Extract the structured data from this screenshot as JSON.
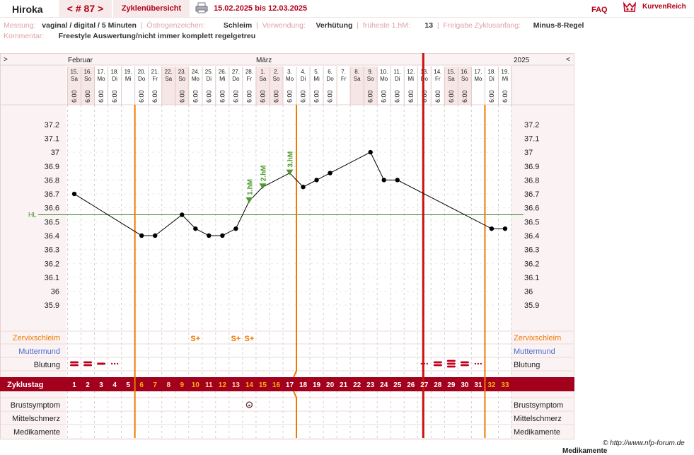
{
  "header": {
    "user": "Hiroka",
    "cycle_nav": "< # 87 >",
    "overview_link": "Zyklenübersicht",
    "printer_icon": "printer-icon",
    "date_range": "15.02.2025 bis 12.03.2025",
    "faq": "FAQ",
    "logo_text": "KurvenReich"
  },
  "info": {
    "messung_label": "Messung:",
    "messung_value": "vaginal / digital / 5 Minuten",
    "oestrogen_label": "Östrogenzeichen:",
    "oestrogen_value": "Schleim",
    "verwendung_label": "Verwendung:",
    "verwendung_value": "Verhütung",
    "frueheste_label": "früheste 1.hM:",
    "frueheste_value": "13",
    "freigabe_label": "Freigabe Zyklusanfang:",
    "freigabe_value": "Minus-8-Regel",
    "kommentar_label": "Kommentar:",
    "kommentar_value": "Freestyle Auswertung/nicht immer komplett regelgetreu"
  },
  "chart_data": {
    "type": "line",
    "months": {
      "left_arrow": ">",
      "feb": "Februar",
      "mar": "März",
      "year": "2025",
      "right_arrow": "<"
    },
    "days": [
      {
        "d": "15.",
        "w": "Sa",
        "t": "6:00",
        "cd": "1",
        "temp": 36.7,
        "we": true
      },
      {
        "d": "16.",
        "w": "So",
        "t": "6:00",
        "cd": "2",
        "temp": null,
        "we": true
      },
      {
        "d": "17.",
        "w": "Mo",
        "t": "6:00",
        "cd": "3",
        "temp": null,
        "we": false
      },
      {
        "d": "18.",
        "w": "Di",
        "t": "6:00",
        "cd": "4",
        "temp": null,
        "we": false
      },
      {
        "d": "19.",
        "w": "Mi",
        "t": "",
        "cd": "5",
        "temp": null,
        "we": false
      },
      {
        "d": "20.",
        "w": "Do",
        "t": "6:00",
        "cd": "6",
        "temp": 36.4,
        "we": false
      },
      {
        "d": "21.",
        "w": "Fr",
        "t": "6:00",
        "cd": "7",
        "temp": 36.4,
        "we": false
      },
      {
        "d": "22.",
        "w": "Sa",
        "t": "",
        "cd": "8",
        "temp": null,
        "we": true
      },
      {
        "d": "23.",
        "w": "So",
        "t": "6:00",
        "cd": "9",
        "temp": 36.55,
        "we": true
      },
      {
        "d": "24.",
        "w": "Mo",
        "t": "6:00",
        "cd": "10",
        "temp": 36.45,
        "we": false
      },
      {
        "d": "25.",
        "w": "Di",
        "t": "6:00",
        "cd": "11",
        "temp": 36.4,
        "we": false
      },
      {
        "d": "26.",
        "w": "Mi",
        "t": "6:00",
        "cd": "12",
        "temp": 36.4,
        "we": false
      },
      {
        "d": "27.",
        "w": "Do",
        "t": "6:00",
        "cd": "13",
        "temp": 36.45,
        "we": false
      },
      {
        "d": "28.",
        "w": "Fr",
        "t": "6:00",
        "cd": "14",
        "temp": 36.65,
        "we": false
      },
      {
        "d": "1.",
        "w": "Sa",
        "t": "6:00",
        "cd": "15",
        "temp": 36.75,
        "we": true
      },
      {
        "d": "2.",
        "w": "So",
        "t": "6:00",
        "cd": "16",
        "temp": null,
        "we": true
      },
      {
        "d": "3.",
        "w": "Mo",
        "t": "6:00",
        "cd": "17",
        "temp": 36.85,
        "we": false
      },
      {
        "d": "4.",
        "w": "Di",
        "t": "6:00",
        "cd": "18",
        "temp": 36.75,
        "we": false
      },
      {
        "d": "5.",
        "w": "Mi",
        "t": "6:00",
        "cd": "19",
        "temp": 36.8,
        "we": false
      },
      {
        "d": "6.",
        "w": "Do",
        "t": "6:00",
        "cd": "20",
        "temp": 36.85,
        "we": false
      },
      {
        "d": "7.",
        "w": "Fr",
        "t": "",
        "cd": "21",
        "temp": null,
        "we": false
      },
      {
        "d": "8.",
        "w": "Sa",
        "t": "",
        "cd": "22",
        "temp": null,
        "we": true
      },
      {
        "d": "9.",
        "w": "So",
        "t": "6:00",
        "cd": "23",
        "temp": 37.0,
        "we": true
      },
      {
        "d": "10.",
        "w": "Mo",
        "t": "6:00",
        "cd": "24",
        "temp": 36.8,
        "we": false
      },
      {
        "d": "11.",
        "w": "Di",
        "t": "6:00",
        "cd": "25",
        "temp": 36.8,
        "we": false
      },
      {
        "d": "12.",
        "w": "Mi",
        "t": "6:00",
        "cd": "26",
        "temp": null,
        "we": false
      },
      {
        "d": "13.",
        "w": "Do",
        "t": "6:00",
        "cd": "27",
        "temp": null,
        "we": false
      },
      {
        "d": "14.",
        "w": "Fr",
        "t": "6:00",
        "cd": "28",
        "temp": null,
        "we": false
      },
      {
        "d": "15.",
        "w": "Sa",
        "t": "6:00",
        "cd": "29",
        "temp": null,
        "we": true
      },
      {
        "d": "16.",
        "w": "So",
        "t": "6:00",
        "cd": "30",
        "temp": null,
        "we": true
      },
      {
        "d": "17.",
        "w": "Mo",
        "t": "",
        "cd": "31",
        "temp": null,
        "we": false
      },
      {
        "d": "18.",
        "w": "Di",
        "t": "6:00",
        "cd": "32",
        "temp": 36.45,
        "we": false
      },
      {
        "d": "19.",
        "w": "Mi",
        "t": "6:00",
        "cd": "33",
        "temp": 36.45,
        "we": false
      }
    ],
    "y_ticks": [
      "37.2",
      "37.1",
      "37",
      "36.9",
      "36.8",
      "36.7",
      "36.6",
      "36.5",
      "36.4",
      "36.3",
      "36.2",
      "36.1",
      "36",
      "35.9"
    ],
    "ylim": [
      35.85,
      37.25
    ],
    "hl": {
      "label": "HL",
      "value": 36.55
    },
    "hm_markers": [
      {
        "label": "1.hM",
        "index": 13
      },
      {
        "label": "2.hM",
        "index": 14
      },
      {
        "label": "3.hM",
        "index": 16
      }
    ],
    "vlines_orange_after": [
      5,
      17,
      31
    ],
    "vline_red_after": 26,
    "row_labels": {
      "zervix": "Zervixschleim",
      "muttermund": "Muttermund",
      "blutung": "Blutung",
      "zyklustag": "Zyklustag",
      "brust": "Brustsymptom",
      "mittel": "Mittelschmerz",
      "medi": "Medikamente"
    },
    "zervix_symbol": "S+",
    "zervix_days": [
      9,
      12,
      13
    ],
    "brust_days": [
      13
    ],
    "bleeding": [
      {
        "i": 0,
        "k": "heavy"
      },
      {
        "i": 1,
        "k": "heavy"
      },
      {
        "i": 2,
        "k": "medium"
      },
      {
        "i": 3,
        "k": "spot"
      },
      {
        "i": 26,
        "k": "spot"
      },
      {
        "i": 27,
        "k": "heavy"
      },
      {
        "i": 28,
        "k": "veryheavy"
      },
      {
        "i": 29,
        "k": "heavy"
      },
      {
        "i": 30,
        "k": "spot"
      }
    ],
    "colors": {
      "line": "#000000",
      "hl": "#3c8c28",
      "orange": "#f07800",
      "red": "#cc1010",
      "maroon": "#a3001e",
      "green": "#4d9a2a",
      "blood": "#c0001a",
      "cd_yellow": "#ffb000"
    }
  },
  "footer": {
    "copyright": "© http://www.nfp-forum.de",
    "cut_label": "Medikamente"
  }
}
